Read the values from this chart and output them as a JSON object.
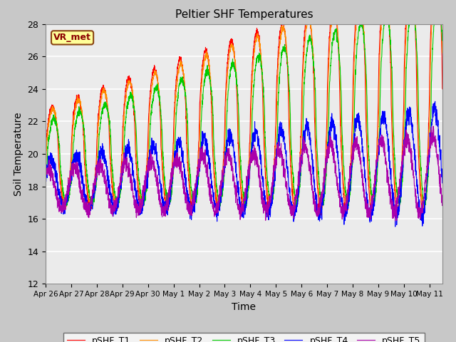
{
  "title": "Peltier SHF Temperatures",
  "xlabel": "Time",
  "ylabel": "Soil Temperature",
  "ylim": [
    12,
    28
  ],
  "yticks": [
    12,
    14,
    16,
    18,
    20,
    22,
    24,
    26,
    28
  ],
  "xtick_labels": [
    "Apr 26",
    "Apr 27",
    "Apr 28",
    "Apr 29",
    "Apr 30",
    "May 1",
    "May 2",
    "May 3",
    "May 4",
    "May 5",
    "May 6",
    "May 7",
    "May 8",
    "May 9",
    "May 10",
    "May 11"
  ],
  "annotation_text": "VR_met",
  "annotation_box_color": "#FFFF99",
  "annotation_text_color": "#8B0000",
  "annotation_border_color": "#8B4513",
  "line_colors": {
    "T1": "#FF0000",
    "T2": "#FF8C00",
    "T3": "#00CC00",
    "T4": "#0000FF",
    "T5": "#AA00AA"
  },
  "line_labels": [
    "pSHF_T1",
    "pSHF_T2",
    "pSHF_T3",
    "pSHF_T4",
    "pSHF_T5"
  ],
  "fig_bg_color": "#C8C8C8",
  "plot_bg_color": "#EBEBEB",
  "grid_color": "#FFFFFF"
}
